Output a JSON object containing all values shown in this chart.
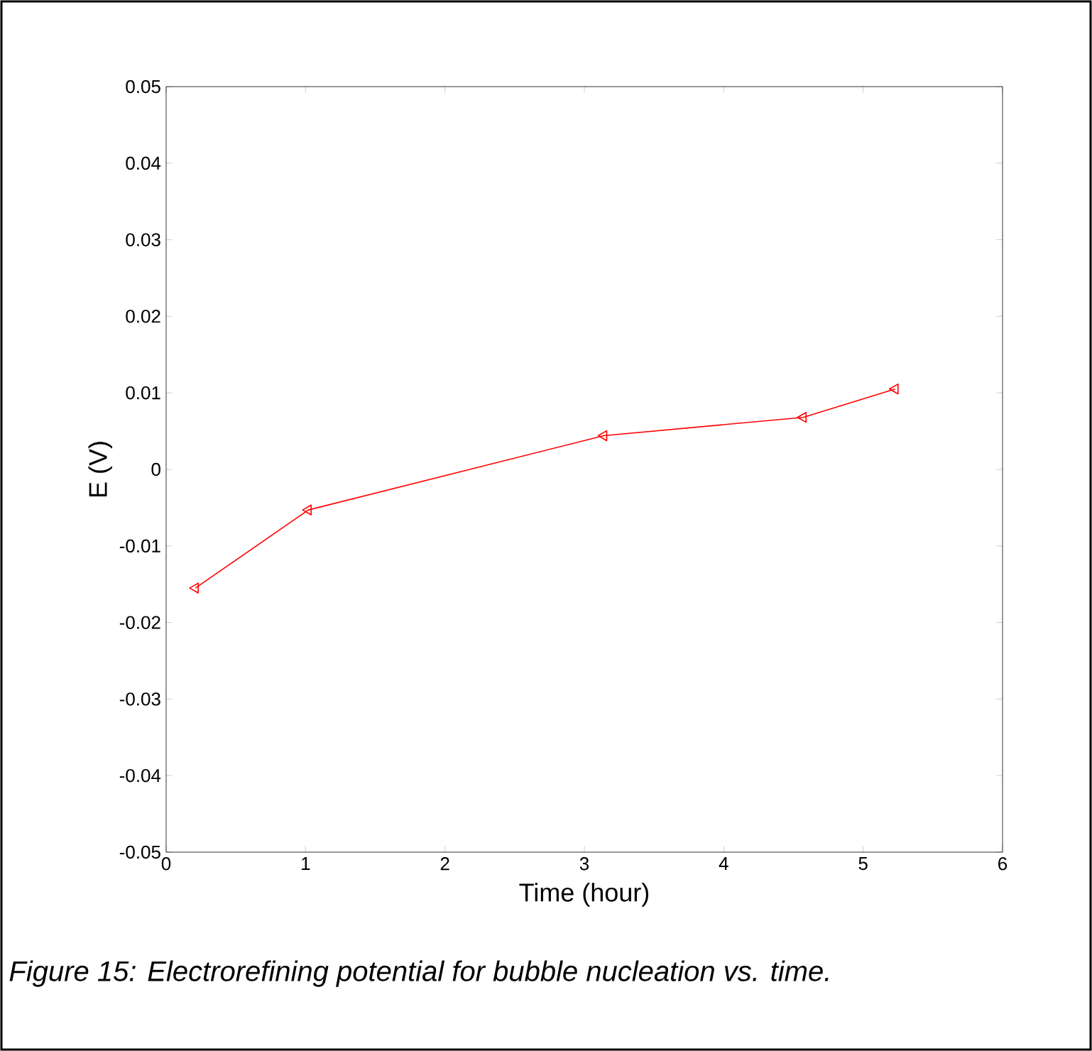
{
  "chart_data": {
    "type": "line",
    "xlabel": "Time (hour)",
    "ylabel": "E (V)",
    "annotations": [
      "*Figure 15: Electrorefining potential for bubble nucleation vs. time.*"
    ],
    "x": [
      0.21,
      1.02,
      3.14,
      4.57,
      5.23
    ],
    "series": [
      {
        "color": "#ff0000",
        "values": [
          -0.0155,
          -0.0053,
          0.0044,
          0.0068,
          0.0105
        ]
      }
    ],
    "xlim": [
      0,
      6
    ],
    "ylim": [
      -0.05,
      0.05
    ],
    "xticks": [
      0,
      1,
      2,
      3,
      4,
      5,
      6
    ],
    "yticks": [
      -0.05,
      -0.04,
      -0.03,
      -0.02,
      -0.01,
      0,
      0.01,
      0.02,
      0.03,
      0.04,
      0.05
    ],
    "grid": false,
    "marker": "triangle",
    "line_style": "solid"
  }
}
